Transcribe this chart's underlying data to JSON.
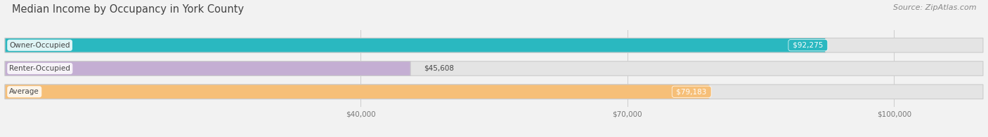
{
  "title": "Median Income by Occupancy in York County",
  "source": "Source: ZipAtlas.com",
  "categories": [
    "Owner-Occupied",
    "Renter-Occupied",
    "Average"
  ],
  "values": [
    92275,
    45608,
    79183
  ],
  "bar_colors": [
    "#2ab8c0",
    "#c4aed3",
    "#f6bf78"
  ],
  "bar_labels": [
    "$92,275",
    "$45,608",
    "$79,183"
  ],
  "label_inside": [
    true,
    false,
    true
  ],
  "xlim": [
    0,
    110000
  ],
  "xticks": [
    40000,
    70000,
    100000
  ],
  "xtick_labels": [
    "$40,000",
    "$70,000",
    "$100,000"
  ],
  "background_color": "#f2f2f2",
  "bar_background_color": "#e4e4e4",
  "title_fontsize": 10.5,
  "source_fontsize": 8,
  "value_fontsize": 7.5,
  "category_fontsize": 7.5,
  "bar_height": 0.62,
  "bar_edge_color": "#cccccc",
  "grid_color": "#cccccc",
  "text_color": "#444444",
  "source_color": "#888888"
}
